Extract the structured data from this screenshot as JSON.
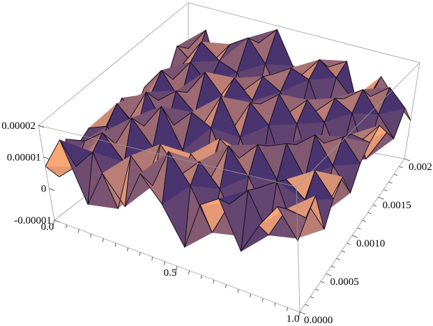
{
  "chart_data": {
    "type": "surface3d",
    "title": "",
    "xlabel": "",
    "ylabel": "",
    "zlabel": "",
    "x_range": [
      0.0,
      1.0
    ],
    "y_range": [
      0.0,
      0.002
    ],
    "z_range": [
      -1e-05,
      2e-05
    ],
    "x_ticks": [
      {
        "value": 0.0,
        "label": "0.0"
      },
      {
        "value": 0.5,
        "label": "0.5"
      },
      {
        "value": 1.0,
        "label": "1.0"
      }
    ],
    "y_ticks": [
      {
        "value": 0.0,
        "label": "0.0000"
      },
      {
        "value": 0.0005,
        "label": "0.0005"
      },
      {
        "value": 0.001,
        "label": "0.0010"
      },
      {
        "value": 0.0015,
        "label": "0.0015"
      },
      {
        "value": 0.002,
        "label": "0.002"
      }
    ],
    "z_ticks": [
      {
        "value": 2e-05,
        "label": "0.00002"
      },
      {
        "value": 1e-05,
        "label": "0.00001"
      },
      {
        "value": 0.0,
        "label": "0"
      },
      {
        "value": -1e-05,
        "label": "-0.00001"
      }
    ],
    "grid": false,
    "mesh": true,
    "surface_colors": {
      "light": "#f9a777",
      "dark": "#4a3470",
      "mesh": "#1a1020",
      "box": "#9a9a9a"
    },
    "nx": 14,
    "ny": 14,
    "z_values": [
      [
        0.2,
        -0.4,
        0.5,
        0.1,
        0.3,
        -0.2,
        0.0,
        0.4,
        -0.3,
        0.2,
        0.1,
        -0.1,
        0.6,
        0.3
      ],
      [
        1.2,
        0.1,
        0.6,
        -0.2,
        0.5,
        0.9,
        0.2,
        -0.3,
        0.4,
        0.8,
        0.3,
        0.5,
        0.2,
        0.9
      ],
      [
        -0.6,
        0.7,
        1.0,
        0.4,
        -0.5,
        0.3,
        1.1,
        0.6,
        -0.2,
        0.1,
        0.9,
        1.2,
        0.4,
        -0.5
      ],
      [
        0.5,
        -0.8,
        0.3,
        1.3,
        0.8,
        -0.4,
        0.2,
        1.0,
        0.7,
        -0.6,
        0.4,
        0.8,
        1.0,
        0.6
      ],
      [
        -0.3,
        0.9,
        -0.2,
        0.6,
        1.5,
        0.7,
        -0.7,
        0.5,
        1.4,
        0.3,
        -0.4,
        0.6,
        1.3,
        0.9
      ],
      [
        0.8,
        0.2,
        1.1,
        -0.9,
        0.4,
        1.2,
        0.6,
        -0.1,
        0.8,
        1.1,
        0.5,
        -0.3,
        0.7,
        1.4
      ],
      [
        0.1,
        1.3,
        0.4,
        0.7,
        -0.6,
        0.9,
        1.6,
        0.3,
        -0.5,
        0.6,
        1.0,
        0.8,
        -0.2,
        0.5
      ],
      [
        -0.9,
        0.5,
        0.9,
        0.2,
        1.0,
        -0.3,
        0.5,
        1.2,
        0.9,
        -0.4,
        0.7,
        1.1,
        0.6,
        0.3
      ],
      [
        0.4,
        -0.6,
        0.3,
        1.2,
        0.6,
        0.4,
        -0.8,
        0.7,
        1.3,
        0.5,
        -0.3,
        0.9,
        1.2,
        0.7
      ],
      [
        0.7,
        0.3,
        -0.8,
        0.5,
        1.1,
        0.8,
        0.2,
        -0.6,
        0.6,
        1.0,
        0.4,
        -0.2,
        0.8,
        1.0
      ],
      [
        -0.5,
        0.8,
        0.6,
        -0.4,
        0.3,
        1.0,
        0.7,
        0.4,
        -0.7,
        0.5,
        0.9,
        0.6,
        0.3,
        -0.4
      ],
      [
        0.3,
        -0.2,
        0.9,
        0.7,
        -0.8,
        0.2,
        1.1,
        0.6,
        0.3,
        -0.5,
        0.6,
        1.0,
        0.5,
        0.8
      ],
      [
        0.9,
        0.6,
        -0.4,
        0.3,
        0.8,
        -0.6,
        0.4,
        0.9,
        0.7,
        0.2,
        -0.6,
        0.4,
        0.9,
        0.2
      ],
      [
        0.2,
        0.5,
        0.8,
        -0.3,
        0.2,
        0.5,
        -0.2,
        0.3,
        0.6,
        0.8,
        0.3,
        -0.2,
        0.4,
        -0.3
      ]
    ]
  }
}
